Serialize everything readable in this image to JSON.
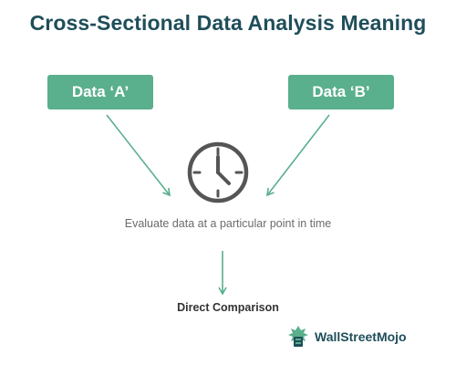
{
  "diagram": {
    "title": "Cross-Sectional Data Analysis Meaning",
    "node_a": "Data ‘A’",
    "node_b": "Data ‘B’",
    "center_icon": "clock-icon",
    "description": "Evaluate data at a particular point in time",
    "result": "Direct Comparison"
  },
  "brand": {
    "name": "WallStreetMojo",
    "logo_icon": "wallstreetmojo-logo"
  },
  "colors": {
    "title": "#1f4e5a",
    "box_fill": "#5aaf8c",
    "arrow": "#5aaf8c",
    "clock": "#555555",
    "description_text": "#6b6b6b",
    "result_text": "#333333"
  }
}
